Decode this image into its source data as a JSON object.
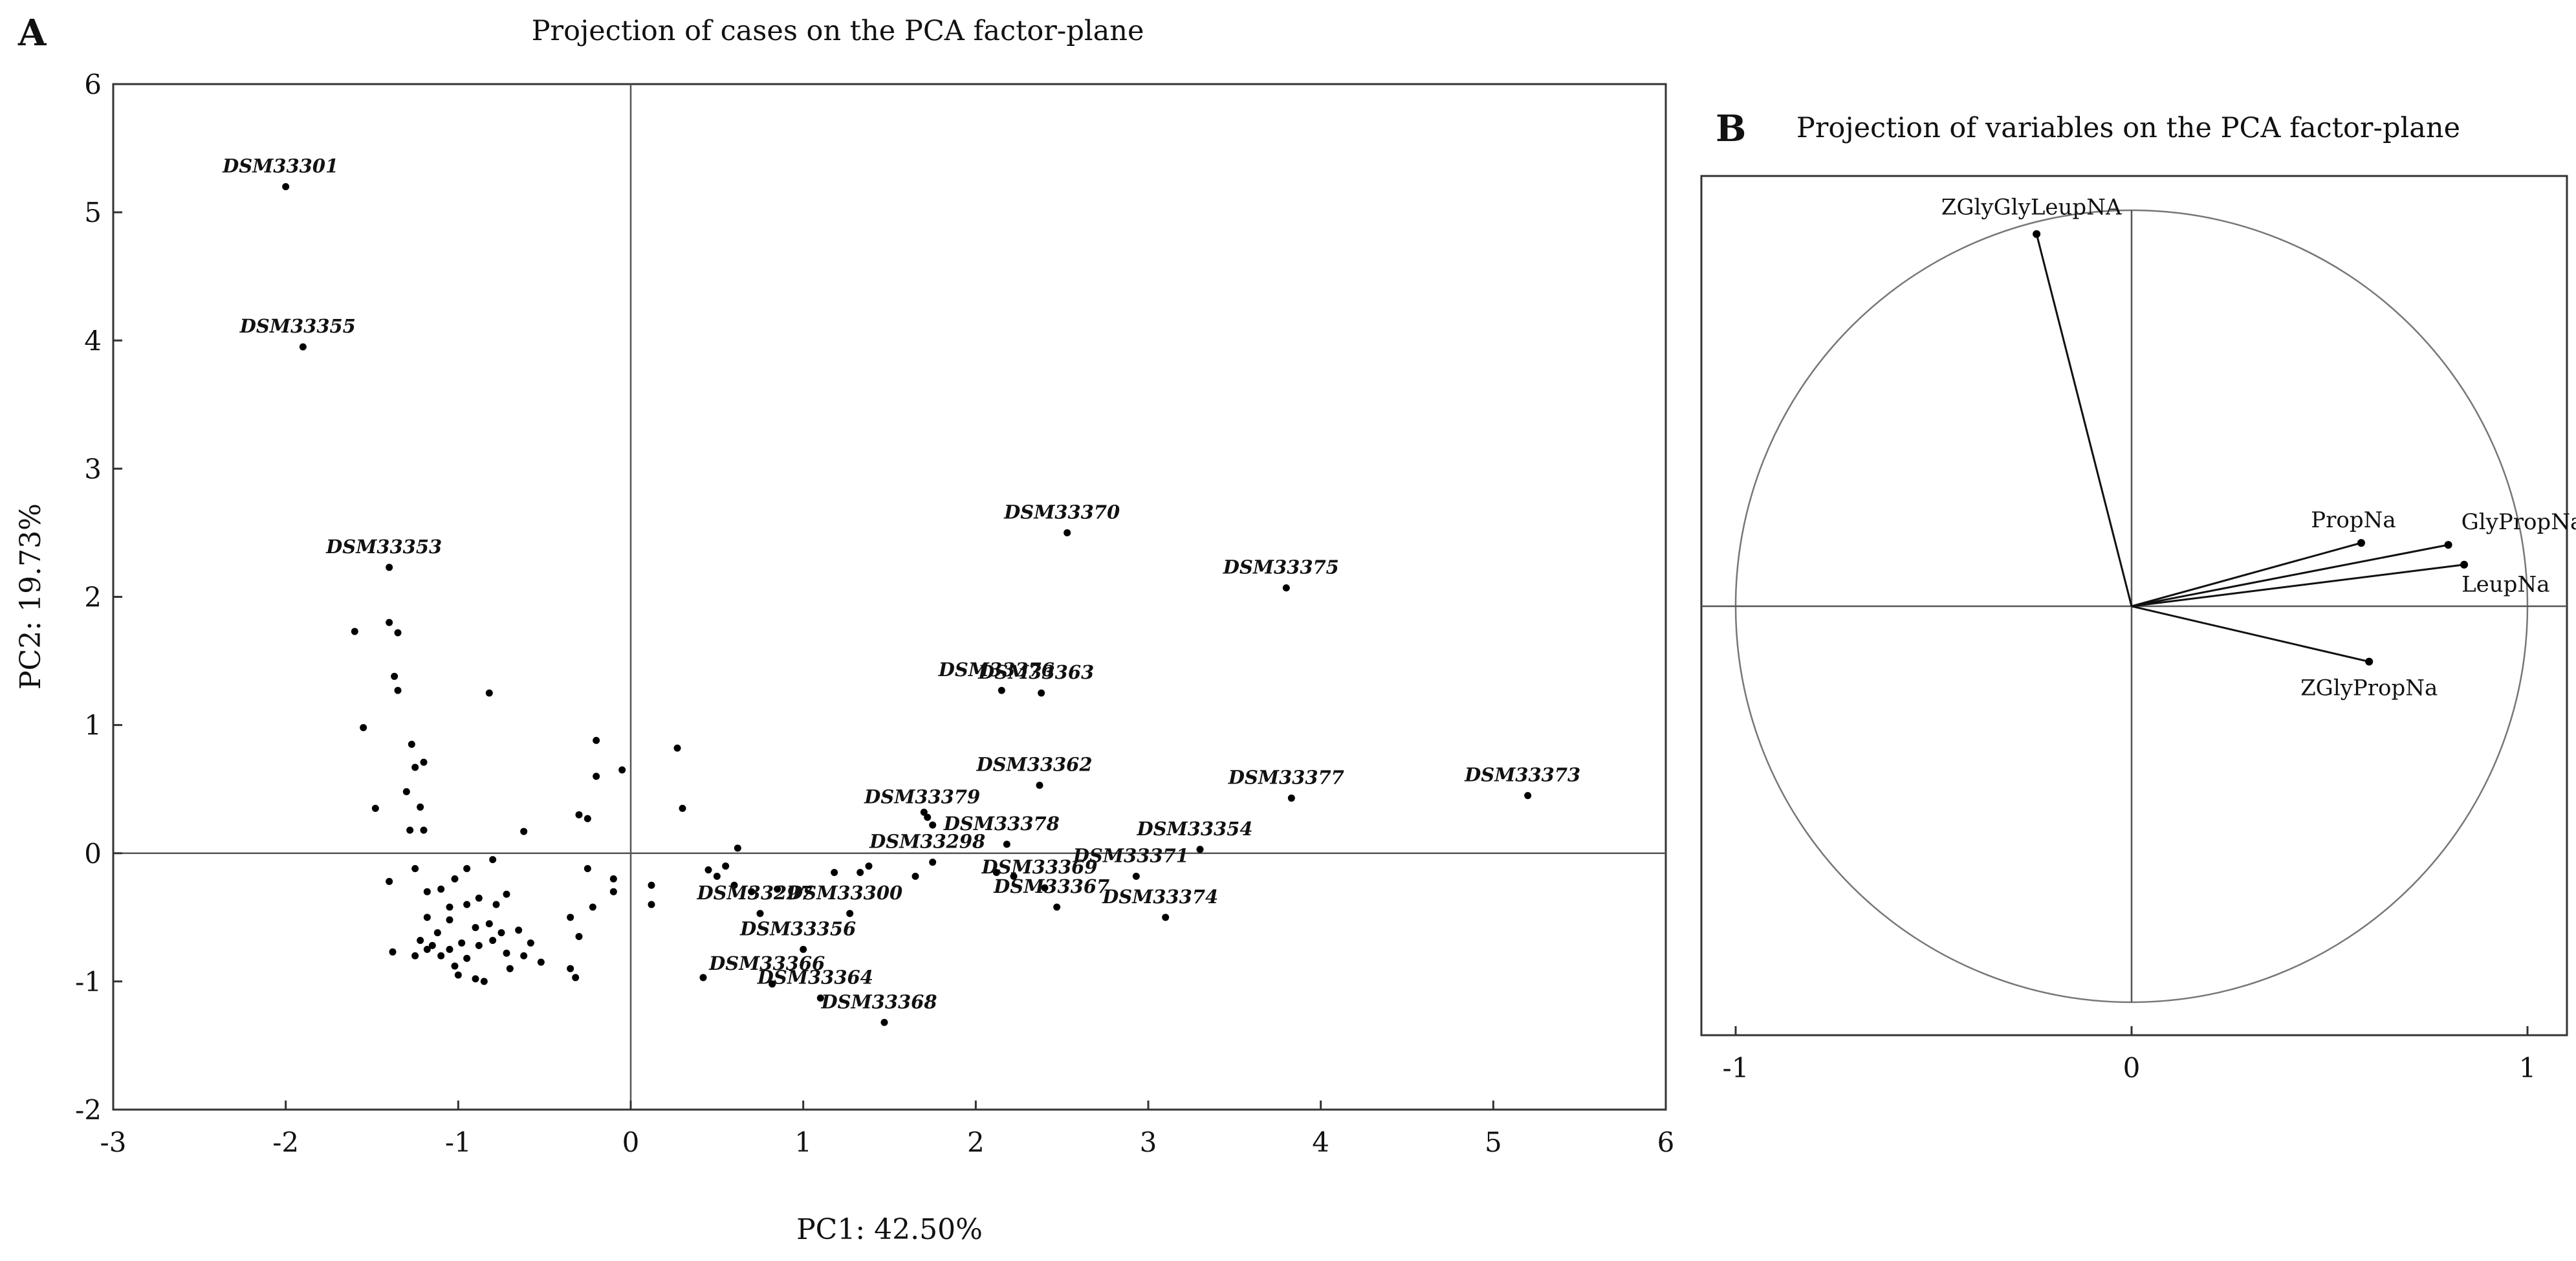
{
  "panelA": {
    "letter": "A",
    "chart_data": {
      "type": "scatter",
      "title": "Projection of cases on the PCA factor-plane",
      "xlabel": "PC1: 42.50%",
      "ylabel": "PC2: 19.73%",
      "xlim": [
        -3,
        6
      ],
      "ylim": [
        -2,
        6
      ],
      "xticks": [
        "-3",
        "-2",
        "-1",
        "0",
        "1",
        "2",
        "3",
        "4",
        "5",
        "6"
      ],
      "yticks": [
        "-2",
        "-1",
        "0",
        "1",
        "2",
        "3",
        "4",
        "5",
        "6"
      ],
      "labeled_points": [
        {
          "label": "DSM33301",
          "x": -2.0,
          "y": 5.2
        },
        {
          "label": "DSM33355",
          "x": -1.9,
          "y": 3.95
        },
        {
          "label": "DSM33353",
          "x": -1.4,
          "y": 2.23
        },
        {
          "label": "DSM33370",
          "x": 2.53,
          "y": 2.5
        },
        {
          "label": "DSM33375",
          "x": 3.8,
          "y": 2.07
        },
        {
          "label": "DSM33376",
          "x": 2.15,
          "y": 1.27
        },
        {
          "label": "DSM33363",
          "x": 2.38,
          "y": 1.25
        },
        {
          "label": "DSM33362",
          "x": 2.37,
          "y": 0.53
        },
        {
          "label": "DSM33377",
          "x": 3.83,
          "y": 0.43
        },
        {
          "label": "DSM33373",
          "x": 5.2,
          "y": 0.45
        },
        {
          "label": "DSM33379",
          "x": 1.72,
          "y": 0.28
        },
        {
          "label": "DSM33378",
          "x": 2.18,
          "y": 0.07
        },
        {
          "label": "DSM33298",
          "x": 1.75,
          "y": -0.07
        },
        {
          "label": "DSM33354",
          "x": 3.3,
          "y": 0.03
        },
        {
          "label": "DSM33371",
          "x": 2.93,
          "y": -0.18
        },
        {
          "label": "DSM33369",
          "x": 2.4,
          "y": -0.27
        },
        {
          "label": "DSM33367",
          "x": 2.47,
          "y": -0.42
        },
        {
          "label": "DSM33374",
          "x": 3.1,
          "y": -0.5
        },
        {
          "label": "DSM33300",
          "x": 1.27,
          "y": -0.47
        },
        {
          "label": "DSM33297",
          "x": 0.75,
          "y": -0.47
        },
        {
          "label": "DSM33356",
          "x": 1.0,
          "y": -0.75
        },
        {
          "label": "DSM33366",
          "x": 0.82,
          "y": -1.02
        },
        {
          "label": "DSM33364",
          "x": 1.1,
          "y": -1.13
        },
        {
          "label": "DSM33368",
          "x": 1.47,
          "y": -1.32
        }
      ],
      "unlabeled_points": [
        [
          -1.6,
          1.73
        ],
        [
          -1.55,
          0.98
        ],
        [
          -1.48,
          0.35
        ],
        [
          -1.4,
          1.8
        ],
        [
          -1.35,
          1.72
        ],
        [
          -1.37,
          1.38
        ],
        [
          -1.35,
          1.27
        ],
        [
          -0.82,
          1.25
        ],
        [
          -1.27,
          0.85
        ],
        [
          -1.25,
          0.67
        ],
        [
          -1.2,
          0.71
        ],
        [
          -1.3,
          0.48
        ],
        [
          -1.22,
          0.36
        ],
        [
          -1.2,
          0.18
        ],
        [
          -1.28,
          0.18
        ],
        [
          -0.62,
          0.17
        ],
        [
          -1.4,
          -0.22
        ],
        [
          -1.25,
          -0.12
        ],
        [
          -1.18,
          -0.3
        ],
        [
          -1.1,
          -0.28
        ],
        [
          -1.02,
          -0.2
        ],
        [
          -0.95,
          -0.12
        ],
        [
          -0.88,
          -0.35
        ],
        [
          -0.8,
          -0.05
        ],
        [
          -0.78,
          -0.4
        ],
        [
          -0.72,
          -0.32
        ],
        [
          -1.05,
          -0.42
        ],
        [
          -1.18,
          -0.5
        ],
        [
          -1.12,
          -0.62
        ],
        [
          -1.05,
          -0.52
        ],
        [
          -0.95,
          -0.4
        ],
        [
          -0.9,
          -0.58
        ],
        [
          -0.82,
          -0.55
        ],
        [
          -0.75,
          -0.62
        ],
        [
          -0.65,
          -0.6
        ],
        [
          -0.58,
          -0.7
        ],
        [
          -0.52,
          -0.85
        ],
        [
          -0.62,
          -0.8
        ],
        [
          -0.72,
          -0.78
        ],
        [
          -0.8,
          -0.68
        ],
        [
          -0.88,
          -0.72
        ],
        [
          -0.95,
          -0.82
        ],
        [
          -1.02,
          -0.88
        ],
        [
          -1.1,
          -0.8
        ],
        [
          -1.18,
          -0.75
        ],
        [
          -1.25,
          -0.8
        ],
        [
          -1.38,
          -0.77
        ],
        [
          -1.22,
          -0.68
        ],
        [
          -1.15,
          -0.72
        ],
        [
          -1.05,
          -0.75
        ],
        [
          -0.98,
          -0.7
        ],
        [
          -0.9,
          -0.98
        ],
        [
          -0.85,
          -1.0
        ],
        [
          -0.7,
          -0.9
        ],
        [
          -1.0,
          -0.95
        ],
        [
          -0.3,
          0.3
        ],
        [
          -0.25,
          0.27
        ],
        [
          -0.2,
          0.88
        ],
        [
          -0.2,
          0.6
        ],
        [
          -0.05,
          0.65
        ],
        [
          -0.25,
          -0.12
        ],
        [
          -0.22,
          -0.42
        ],
        [
          -0.35,
          -0.5
        ],
        [
          -0.3,
          -0.65
        ],
        [
          -0.35,
          -0.9
        ],
        [
          -0.32,
          -0.97
        ],
        [
          -0.1,
          -0.2
        ],
        [
          -0.1,
          -0.3
        ],
        [
          0.12,
          -0.25
        ],
        [
          0.12,
          -0.4
        ],
        [
          0.27,
          0.82
        ],
        [
          0.3,
          0.35
        ],
        [
          0.45,
          -0.13
        ],
        [
          0.5,
          -0.18
        ],
        [
          0.55,
          -0.1
        ],
        [
          0.6,
          -0.25
        ],
        [
          0.62,
          0.04
        ],
        [
          0.7,
          -0.3
        ],
        [
          0.85,
          -0.28
        ],
        [
          0.42,
          -0.97
        ],
        [
          1.18,
          -0.15
        ],
        [
          1.33,
          -0.15
        ],
        [
          1.38,
          -0.1
        ],
        [
          1.65,
          -0.18
        ],
        [
          2.12,
          -0.15
        ],
        [
          2.22,
          -0.18
        ],
        [
          1.7,
          0.32
        ],
        [
          1.75,
          0.22
        ]
      ]
    }
  },
  "panelB": {
    "letter": "B",
    "chart_data": {
      "type": "scatter",
      "title": "Projection of variables on the PCA factor-plane",
      "xlim": [
        -1,
        1
      ],
      "ylim": [
        -1,
        1
      ],
      "xticks": [
        "-1",
        "0",
        "1"
      ],
      "unit_circle": true,
      "vectors": [
        {
          "label": "ZGlyGlyLeupNA",
          "x": -0.24,
          "y": 0.94
        },
        {
          "label": "PropNa",
          "x": 0.58,
          "y": 0.16
        },
        {
          "label": "GlyPropNa",
          "x": 0.8,
          "y": 0.155
        },
        {
          "label": "LeupNa",
          "x": 0.84,
          "y": 0.105
        },
        {
          "label": "ZGlyPropNa",
          "x": 0.6,
          "y": -0.14
        }
      ]
    }
  }
}
